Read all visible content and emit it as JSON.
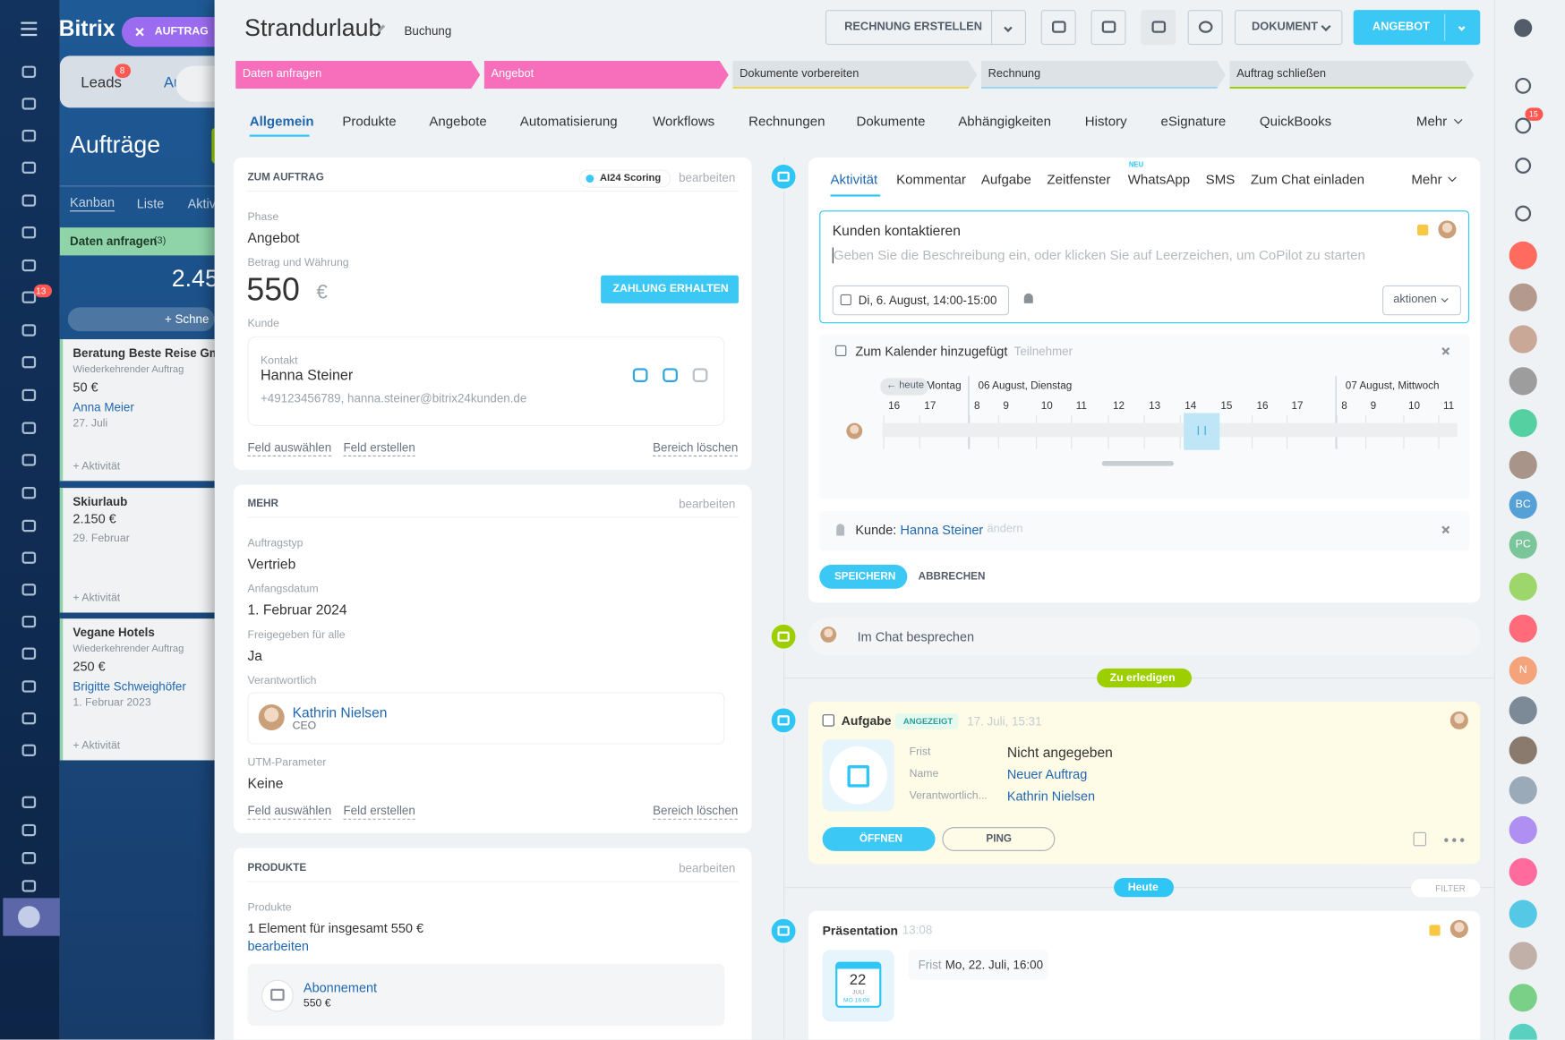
{
  "sidebar": {
    "logo": "Bitrix",
    "feed_badge": "13"
  },
  "background": {
    "floating_button": "AUFTRAG",
    "leads": "Leads",
    "leads_badge": "8",
    "second_tab": "Au",
    "title": "Aufträge",
    "views": [
      "Kanban",
      "Liste",
      "Aktiv"
    ],
    "column": {
      "name": "Daten anfragen",
      "count": "(3)",
      "sum": "2.45",
      "quick_add": "+ Schne"
    },
    "cards": [
      {
        "title": "Beratung Beste Reise Gm",
        "subtitle": "Wiederkehrender Auftrag",
        "amount": "50 €",
        "contact": "Anna Meier",
        "date": "27. Juli",
        "activity": "+ Aktivität"
      },
      {
        "title": "Skiurlaub",
        "amount": "2.150 €",
        "date": "29. Februar",
        "activity": "+ Aktivität"
      },
      {
        "title": "Vegane Hotels",
        "subtitle": "Wiederkehrender Auftrag",
        "amount": "250 €",
        "contact": "Brigitte Schweighöfer",
        "date": "1. Februar 2023",
        "activity": "+ Aktivität"
      }
    ]
  },
  "header": {
    "title": "Strandurlaub",
    "category": "Buchung",
    "invoice_button": "RECHNUNG ERSTELLEN",
    "document_button": "DOKUMENT",
    "offer_button": "ANGEBOT"
  },
  "stages": [
    "Daten anfragen",
    "Angebot",
    "Dokumente vorbereiten",
    "Rechnung",
    "Auftrag schließen"
  ],
  "tabs": [
    "Allgemein",
    "Produkte",
    "Angebote",
    "Automatisierung",
    "Workflows",
    "Rechnungen",
    "Dokumente",
    "Abhängigkeiten",
    "History",
    "eSignature",
    "QuickBooks"
  ],
  "tabs_more": "Mehr",
  "deal_card": {
    "title": "ZUM AUFTRAG",
    "scoring": "AI24 Scoring",
    "edit": "bearbeiten",
    "phase_label": "Phase",
    "phase": "Angebot",
    "amount_label": "Betrag und Währung",
    "amount": "550",
    "currency": "€",
    "payment_button": "ZAHLUNG ERHALTEN",
    "client_label": "Kunde",
    "contact_label": "Kontakt",
    "contact_name": "Hanna Steiner",
    "contact_details": "+49123456789, hanna.steiner@bitrix24kunden.de",
    "select_field": "Feld auswählen",
    "create_field": "Feld erstellen",
    "delete_section": "Bereich löschen"
  },
  "more_card": {
    "title": "MEHR",
    "edit": "bearbeiten",
    "type_label": "Auftragstyp",
    "type": "Vertrieb",
    "start_label": "Anfangsdatum",
    "start": "1. Februar 2024",
    "shared_label": "Freigegeben für alle",
    "shared": "Ja",
    "responsible_label": "Verantwortlich",
    "responsible": "Kathrin Nielsen",
    "responsible_role": "CEO",
    "utm_label": "UTM-Parameter",
    "utm": "Keine",
    "select_field": "Feld auswählen",
    "create_field": "Feld erstellen",
    "delete_section": "Bereich löschen"
  },
  "products_card": {
    "title": "PRODUKTE",
    "edit": "bearbeiten",
    "products_label": "Produkte",
    "summary": "1 Element für insgesamt 550 €",
    "edit_link": "bearbeiten",
    "product_name": "Abonnement",
    "product_price": "550 €"
  },
  "timeline": {
    "tabs": [
      "Aktivität",
      "Kommentar",
      "Aufgabe",
      "Zeitfenster",
      "WhatsApp",
      "SMS",
      "Zum Chat einladen"
    ],
    "tabs_more": "Mehr",
    "new_badge": "NEU",
    "editor": {
      "title": "Kunden kontaktieren",
      "placeholder": "Geben Sie die Beschreibung ein, oder klicken Sie auf Leerzeichen, um CoPilot zu starten",
      "datetime": "Di, 6. August, 14:00-15:00",
      "actions": "aktionen"
    },
    "calendar": {
      "title": "Zum Kalender hinzugefügt",
      "participants": "Teilnehmer",
      "today": "← heute",
      "days": [
        "Montag",
        "06 August, Dienstag",
        "07 August, Mittwoch"
      ],
      "hours": [
        "16",
        "17",
        "8",
        "9",
        "10",
        "11",
        "12",
        "13",
        "14",
        "15",
        "16",
        "17",
        "8",
        "9",
        "10",
        "11"
      ]
    },
    "client": {
      "label": "Kunde:",
      "name": "Hanna Steiner",
      "change": "ändern"
    },
    "save": "SPEICHERN",
    "cancel": "ABBRECHEN",
    "chat": "Im Chat besprechen",
    "todo": "Zu erledigen",
    "task": {
      "title": "Aufgabe",
      "status": "ANGEZEIGT",
      "time": "17. Juli, 15:31",
      "deadline_label": "Frist",
      "deadline": "Nicht angegeben",
      "name_label": "Name",
      "name": "Neuer Auftrag",
      "responsible_label": "Verantwortlich...",
      "responsible": "Kathrin Nielsen",
      "open": "ÖFFNEN",
      "ping": "PING"
    },
    "today": "Heute",
    "filter": "FILTER",
    "presentation": {
      "title": "Präsentation",
      "time": "13:08",
      "day": "22",
      "month": "JULI",
      "weekday_time": "MO 16:00",
      "deadline_label": "Frist",
      "deadline": "Mo, 22. Juli, 16:00"
    }
  },
  "right_sidebar": {
    "notifications_badge": "15",
    "avatars": [
      "BC",
      "PC",
      "N"
    ]
  }
}
